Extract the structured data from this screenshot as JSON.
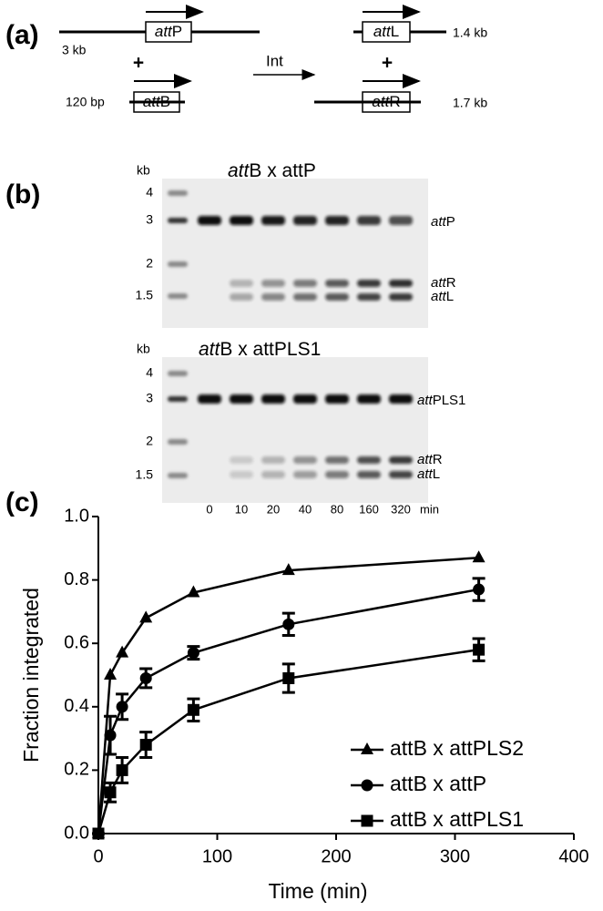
{
  "diagram": {
    "label": "(a)",
    "attP": "attP",
    "attP_size": "3 kb",
    "attB": "attB",
    "attB_size": "120 bp",
    "plus": "+",
    "enzyme": "Int",
    "attL": "attL",
    "attL_size": "1.4 kb",
    "attR": "attR",
    "attR_size": "1.7 kb"
  },
  "gels": {
    "label": "(b)",
    "panels": [
      {
        "title": "attB x attP",
        "unit": "kb",
        "markers": [
          "4",
          "3",
          "2",
          "1.5"
        ],
        "bands": [
          "attP",
          "attR",
          "attL"
        ]
      },
      {
        "title": "attB x attPLS1",
        "unit": "kb",
        "markers": [
          "4",
          "3",
          "2",
          "1.5"
        ],
        "bands": [
          "attPLS1",
          "attR",
          "attL"
        ]
      }
    ],
    "lanes": [
      "0",
      "10",
      "20",
      "40",
      "80",
      "160",
      "320"
    ],
    "lane_unit": "min"
  },
  "chart_data": {
    "type": "line",
    "label": "(c)",
    "x_label": "Time (min)",
    "y_label": "Fraction integrated",
    "x": [
      0,
      10,
      20,
      40,
      80,
      160,
      320
    ],
    "series": [
      {
        "name": "attB x attPLS2",
        "marker": "triangle",
        "color": "#000000",
        "values": [
          0,
          0.5,
          0.57,
          0.68,
          0.76,
          0.83,
          0.87
        ]
      },
      {
        "name": "attB x attP",
        "marker": "circle",
        "color": "#000000",
        "values": [
          0,
          0.31,
          0.4,
          0.49,
          0.57,
          0.66,
          0.77
        ],
        "errors": [
          0,
          0.06,
          0.04,
          0.03,
          0.02,
          0.035,
          0.035
        ]
      },
      {
        "name": "attB x attPLS1",
        "marker": "square",
        "color": "#000000",
        "values": [
          0,
          0.13,
          0.2,
          0.28,
          0.39,
          0.49,
          0.58
        ],
        "errors": [
          0,
          0.03,
          0.04,
          0.04,
          0.035,
          0.045,
          0.035
        ]
      }
    ],
    "xlim": [
      0,
      400
    ],
    "ylim": [
      0,
      1.0
    ],
    "xticks": [
      0,
      100,
      200,
      300,
      400
    ],
    "yticks": [
      {
        "value": 0,
        "label": "0.0"
      },
      {
        "value": 0.2,
        "label": "0.2"
      },
      {
        "value": 0.4,
        "label": "0.4"
      },
      {
        "value": 0.6,
        "label": "0.6"
      },
      {
        "value": 0.8,
        "label": "0.8"
      },
      {
        "value": 1.0,
        "label": "1.0"
      }
    ],
    "legend": "lower right"
  }
}
